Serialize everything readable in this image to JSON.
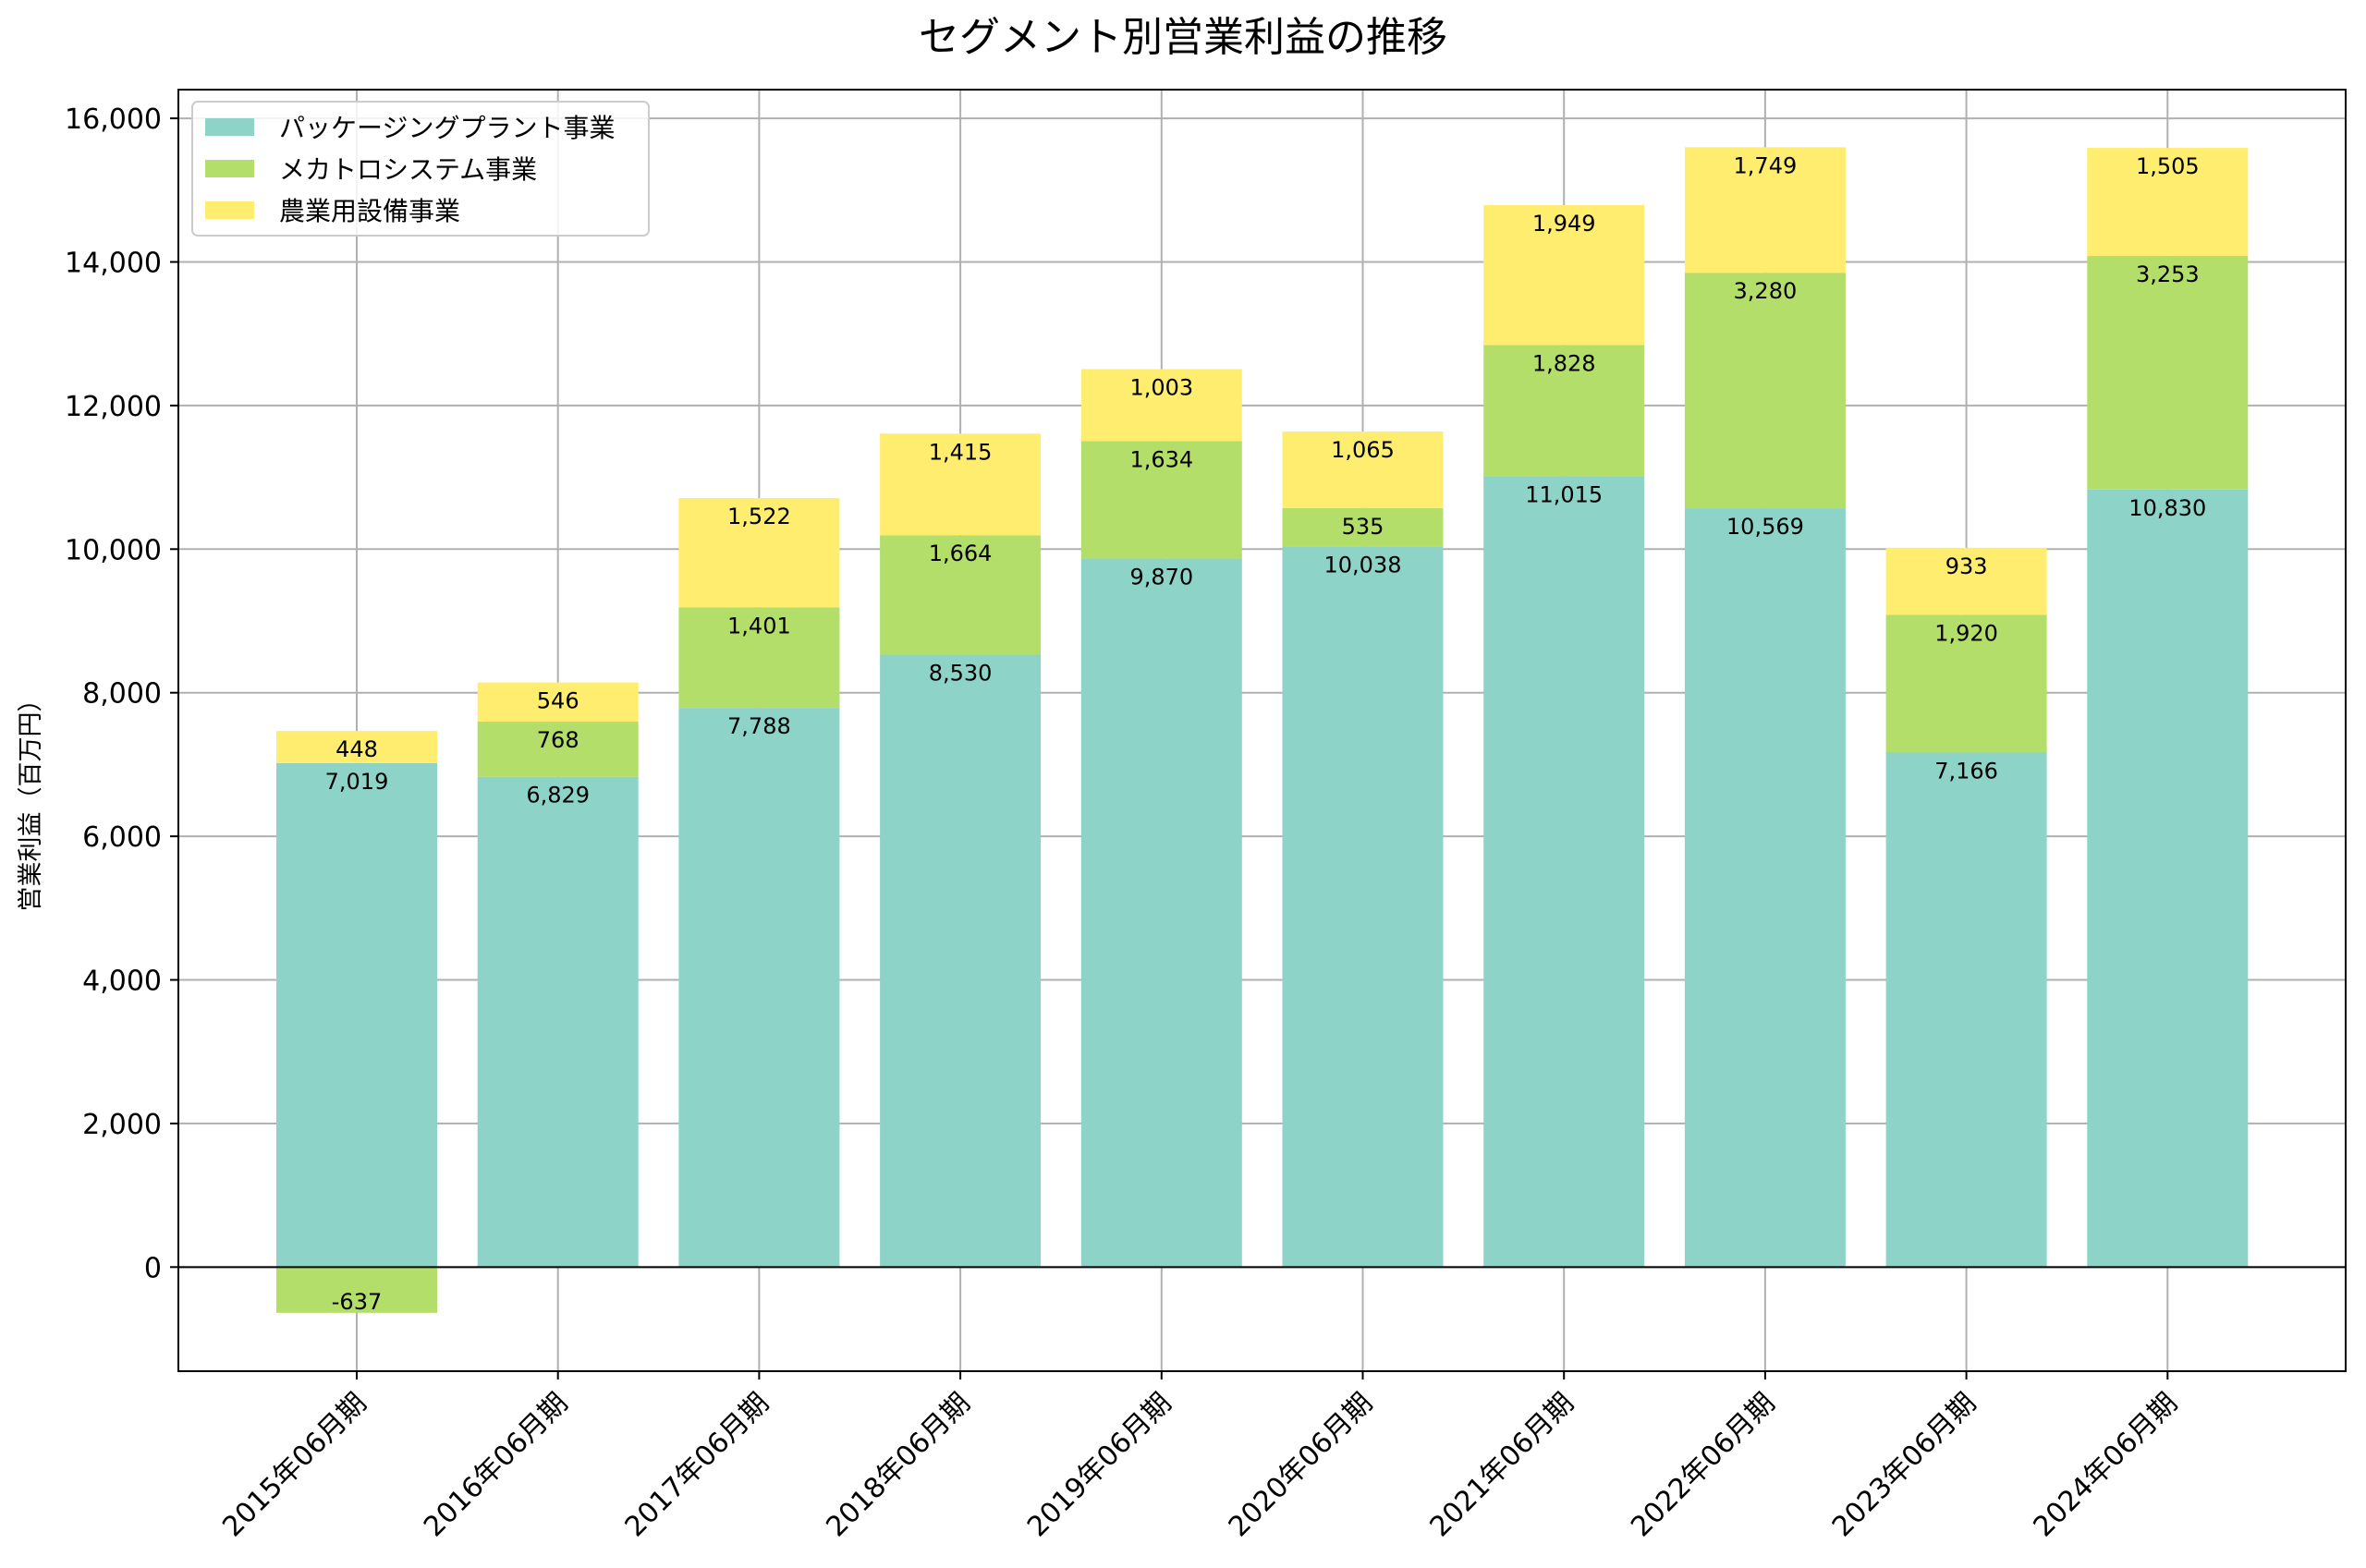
{
  "chart_data": {
    "type": "bar",
    "stacked": true,
    "title": "セグメント別営業利益の推移",
    "xlabel": "",
    "ylabel": "営業利益（百万円）",
    "ylim": [
      -1450,
      16400
    ],
    "yticks": [
      0,
      2000,
      4000,
      6000,
      8000,
      10000,
      12000,
      14000,
      16000
    ],
    "ytick_labels": [
      "0",
      "2,000",
      "4,000",
      "6,000",
      "8,000",
      "10,000",
      "12,000",
      "14,000",
      "16,000"
    ],
    "grid": true,
    "legend_position": "top-left",
    "categories": [
      "2015年06月期",
      "2016年06月期",
      "2017年06月期",
      "2018年06月期",
      "2019年06月期",
      "2020年06月期",
      "2021年06月期",
      "2022年06月期",
      "2023年06月期",
      "2024年06月期"
    ],
    "series": [
      {
        "name": "パッケージングプラント事業",
        "color": "#8dd3c7",
        "values": [
          7019,
          6829,
          7788,
          8530,
          9870,
          10038,
          11015,
          10569,
          7166,
          10830
        ],
        "labels": [
          "7,019",
          "6,829",
          "7,788",
          "8,530",
          "9,870",
          "10,038",
          "11,015",
          "10,569",
          "7,166",
          "10,830"
        ]
      },
      {
        "name": "メカトロシステム事業",
        "color": "#b3de69",
        "values": [
          -637,
          768,
          1401,
          1664,
          1634,
          535,
          1828,
          3280,
          1920,
          3253
        ],
        "labels": [
          "-637",
          "768",
          "1,401",
          "1,664",
          "1,634",
          "535",
          "1,828",
          "3,280",
          "1,920",
          "3,253"
        ]
      },
      {
        "name": "農業用設備事業",
        "color": "#ffed6f",
        "values": [
          448,
          546,
          1522,
          1415,
          1003,
          1065,
          1949,
          1749,
          933,
          1505
        ],
        "labels": [
          "448",
          "546",
          "1,522",
          "1,415",
          "1,003",
          "1,065",
          "1,949",
          "1,749",
          "933",
          "1,505"
        ]
      }
    ]
  }
}
